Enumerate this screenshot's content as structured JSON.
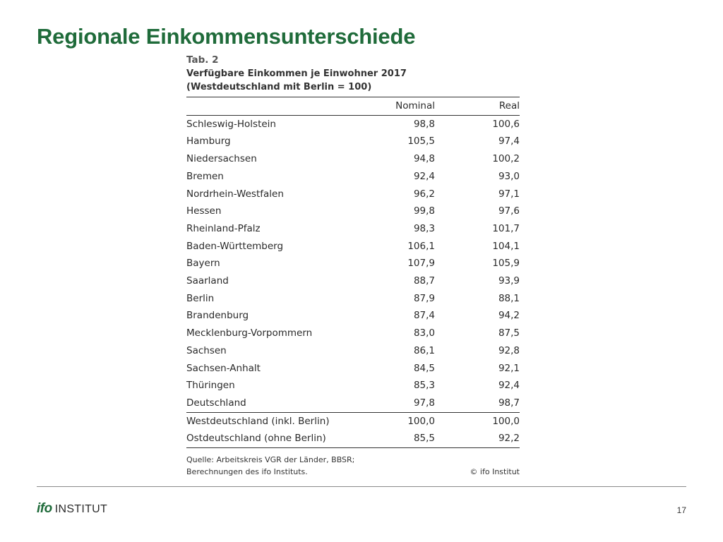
{
  "slide": {
    "title": "Regionale Einkommensunterschiede",
    "page_number": "17"
  },
  "logo": {
    "ifo": "ifo",
    "institut": "INSTITUT"
  },
  "table": {
    "label": "Tab. 2",
    "caption_line1": "Verfügbare Einkommen je Einwohner 2017",
    "caption_line2": "(Westdeutschland mit Berlin = 100)",
    "columns": [
      "",
      "Nominal",
      "Real"
    ],
    "rows": [
      {
        "region": "Schleswig-Holstein",
        "nominal": "98,8",
        "real": "100,6"
      },
      {
        "region": "Hamburg",
        "nominal": "105,5",
        "real": "97,4"
      },
      {
        "region": "Niedersachsen",
        "nominal": "94,8",
        "real": "100,2"
      },
      {
        "region": "Bremen",
        "nominal": "92,4",
        "real": "93,0"
      },
      {
        "region": "Nordrhein-Westfalen",
        "nominal": "96,2",
        "real": "97,1"
      },
      {
        "region": "Hessen",
        "nominal": "99,8",
        "real": "97,6"
      },
      {
        "region": "Rheinland-Pfalz",
        "nominal": "98,3",
        "real": "101,7"
      },
      {
        "region": "Baden-Württemberg",
        "nominal": "106,1",
        "real": "104,1"
      },
      {
        "region": "Bayern",
        "nominal": "107,9",
        "real": "105,9"
      },
      {
        "region": "Saarland",
        "nominal": "88,7",
        "real": "93,9"
      },
      {
        "region": "Berlin",
        "nominal": "87,9",
        "real": "88,1"
      },
      {
        "region": "Brandenburg",
        "nominal": "87,4",
        "real": "94,2"
      },
      {
        "region": "Mecklenburg-Vorpommern",
        "nominal": "83,0",
        "real": "87,5"
      },
      {
        "region": "Sachsen",
        "nominal": "86,1",
        "real": "92,8"
      },
      {
        "region": "Sachsen-Anhalt",
        "nominal": "84,5",
        "real": "92,1"
      },
      {
        "region": "Thüringen",
        "nominal": "85,3",
        "real": "92,4"
      },
      {
        "region": "Deutschland",
        "nominal": "97,8",
        "real": "98,7"
      }
    ],
    "totals": [
      {
        "region": "Westdeutschland (inkl. Berlin)",
        "nominal": "100,0",
        "real": "100,0"
      },
      {
        "region": "Ostdeutschland (ohne Berlin)",
        "nominal": "85,5",
        "real": "92,2"
      }
    ],
    "source_line1": "Quelle: Arbeitskreis VGR der Länder, BBSR;",
    "source_line2": "Berechnungen des ifo Instituts.",
    "copyright": "© ifo Institut"
  }
}
